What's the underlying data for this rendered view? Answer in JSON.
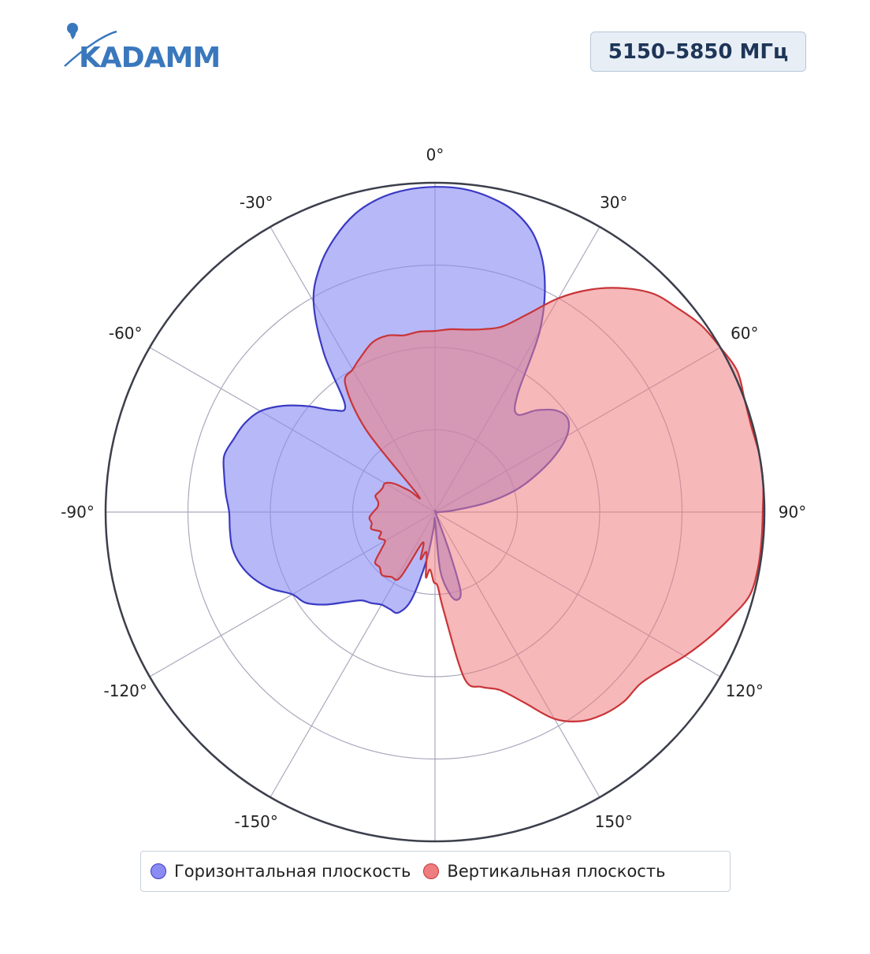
{
  "header": {
    "logo_text": "KADAMM",
    "frequency_badge": "5150–5850 МГц"
  },
  "colors": {
    "horizontal_fill": "#8a8cf2",
    "horizontal_line": "#3a3ac4",
    "vertical_fill": "#ee7d80",
    "vertical_line": "#c93438",
    "logo": "#3a78bd"
  },
  "chart_data": {
    "type": "polar-area",
    "angle_direction": "clockwise",
    "zero_position": "top",
    "angle_ticks": [
      0,
      30,
      60,
      90,
      120,
      150,
      180,
      -150,
      -120,
      -90,
      -60,
      -30
    ],
    "angle_tick_labels": [
      "0°",
      "30°",
      "60°",
      "90°",
      "120°",
      "150°",
      "",
      "-150°",
      "-120°",
      "-90°",
      "-60°",
      "-30°"
    ],
    "radial_range": [
      0,
      4
    ],
    "radial_rings": [
      1,
      2,
      3
    ],
    "grid": true,
    "legend_position": "bottom",
    "series": [
      {
        "name": "Горизонтальная плоскость",
        "points": [
          [
            0,
            3.95
          ],
          [
            5,
            3.94
          ],
          [
            10,
            3.88
          ],
          [
            15,
            3.77
          ],
          [
            20,
            3.55
          ],
          [
            25,
            3.15
          ],
          [
            30,
            2.55
          ],
          [
            35,
            1.75
          ],
          [
            40,
            1.55
          ],
          [
            45,
            1.75
          ],
          [
            50,
            1.92
          ],
          [
            55,
            1.97
          ],
          [
            60,
            1.85
          ],
          [
            65,
            1.6
          ],
          [
            70,
            1.3
          ],
          [
            75,
            1.0
          ],
          [
            80,
            0.62
          ],
          [
            85,
            0.22
          ],
          [
            90,
            0.05
          ],
          [
            95,
            0.02
          ],
          [
            120,
            0.02
          ],
          [
            150,
            0.02
          ],
          [
            160,
            0.5
          ],
          [
            162,
            1.0
          ],
          [
            166,
            1.1
          ],
          [
            170,
            1.0
          ],
          [
            175,
            0.7
          ],
          [
            180,
            0.1
          ],
          [
            185,
            0.2
          ],
          [
            190,
            0.6
          ],
          [
            195,
            1.1
          ],
          [
            200,
            1.3
          ],
          [
            205,
            1.3
          ],
          [
            210,
            1.3
          ],
          [
            215,
            1.35
          ],
          [
            220,
            1.4
          ],
          [
            225,
            1.55
          ],
          [
            230,
            1.75
          ],
          [
            235,
            1.92
          ],
          [
            240,
            2.0
          ],
          [
            245,
            2.2
          ],
          [
            250,
            2.35
          ],
          [
            255,
            2.45
          ],
          [
            260,
            2.5
          ],
          [
            265,
            2.5
          ],
          [
            270,
            2.5
          ],
          [
            275,
            2.55
          ],
          [
            280,
            2.6
          ],
          [
            285,
            2.65
          ],
          [
            290,
            2.6
          ],
          [
            295,
            2.55
          ],
          [
            300,
            2.45
          ],
          [
            305,
            2.25
          ],
          [
            310,
            2.0
          ],
          [
            315,
            1.75
          ],
          [
            320,
            1.7
          ],
          [
            325,
            2.35
          ],
          [
            330,
            2.95
          ],
          [
            335,
            3.3
          ],
          [
            340,
            3.55
          ],
          [
            345,
            3.75
          ],
          [
            350,
            3.87
          ],
          [
            355,
            3.93
          ]
        ]
      },
      {
        "name": "Вертикальная плоскость",
        "points": [
          [
            0,
            2.2
          ],
          [
            5,
            2.23
          ],
          [
            10,
            2.25
          ],
          [
            15,
            2.3
          ],
          [
            20,
            2.4
          ],
          [
            25,
            2.65
          ],
          [
            30,
            3.0
          ],
          [
            35,
            3.3
          ],
          [
            40,
            3.55
          ],
          [
            45,
            3.75
          ],
          [
            50,
            3.85
          ],
          [
            55,
            3.95
          ],
          [
            60,
            4.0
          ],
          [
            65,
            4.05
          ],
          [
            70,
            4.0
          ],
          [
            75,
            3.98
          ],
          [
            80,
            4.0
          ],
          [
            85,
            4.0
          ],
          [
            90,
            3.98
          ],
          [
            95,
            3.98
          ],
          [
            100,
            3.98
          ],
          [
            105,
            3.95
          ],
          [
            110,
            3.8
          ],
          [
            115,
            3.65
          ],
          [
            120,
            3.5
          ],
          [
            125,
            3.35
          ],
          [
            130,
            3.25
          ],
          [
            135,
            3.25
          ],
          [
            140,
            3.2
          ],
          [
            145,
            3.1
          ],
          [
            150,
            2.9
          ],
          [
            155,
            2.55
          ],
          [
            160,
            2.3
          ],
          [
            165,
            2.2
          ],
          [
            170,
            2.05
          ],
          [
            175,
            1.2
          ],
          [
            178,
            0.9
          ],
          [
            181,
            0.85
          ],
          [
            185,
            0.7
          ],
          [
            188,
            0.8
          ],
          [
            192,
            0.5
          ],
          [
            197,
            0.6
          ],
          [
            202,
            0.4
          ],
          [
            208,
            0.9
          ],
          [
            214,
            0.95
          ],
          [
            220,
            1.0
          ],
          [
            225,
            0.95
          ],
          [
            230,
            0.95
          ],
          [
            235,
            0.8
          ],
          [
            240,
            0.7
          ],
          [
            245,
            0.75
          ],
          [
            250,
            0.7
          ],
          [
            255,
            0.8
          ],
          [
            260,
            0.78
          ],
          [
            265,
            0.8
          ],
          [
            270,
            0.75
          ],
          [
            275,
            0.7
          ],
          [
            280,
            0.7
          ],
          [
            285,
            0.75
          ],
          [
            290,
            0.72
          ],
          [
            295,
            0.7
          ],
          [
            300,
            0.7
          ],
          [
            305,
            0.6
          ],
          [
            310,
            0.4
          ],
          [
            315,
            0.3
          ],
          [
            320,
            1.3
          ],
          [
            325,
            1.9
          ],
          [
            330,
            2.0
          ],
          [
            335,
            2.1
          ],
          [
            340,
            2.2
          ],
          [
            345,
            2.22
          ],
          [
            350,
            2.18
          ],
          [
            355,
            2.2
          ]
        ]
      }
    ]
  }
}
